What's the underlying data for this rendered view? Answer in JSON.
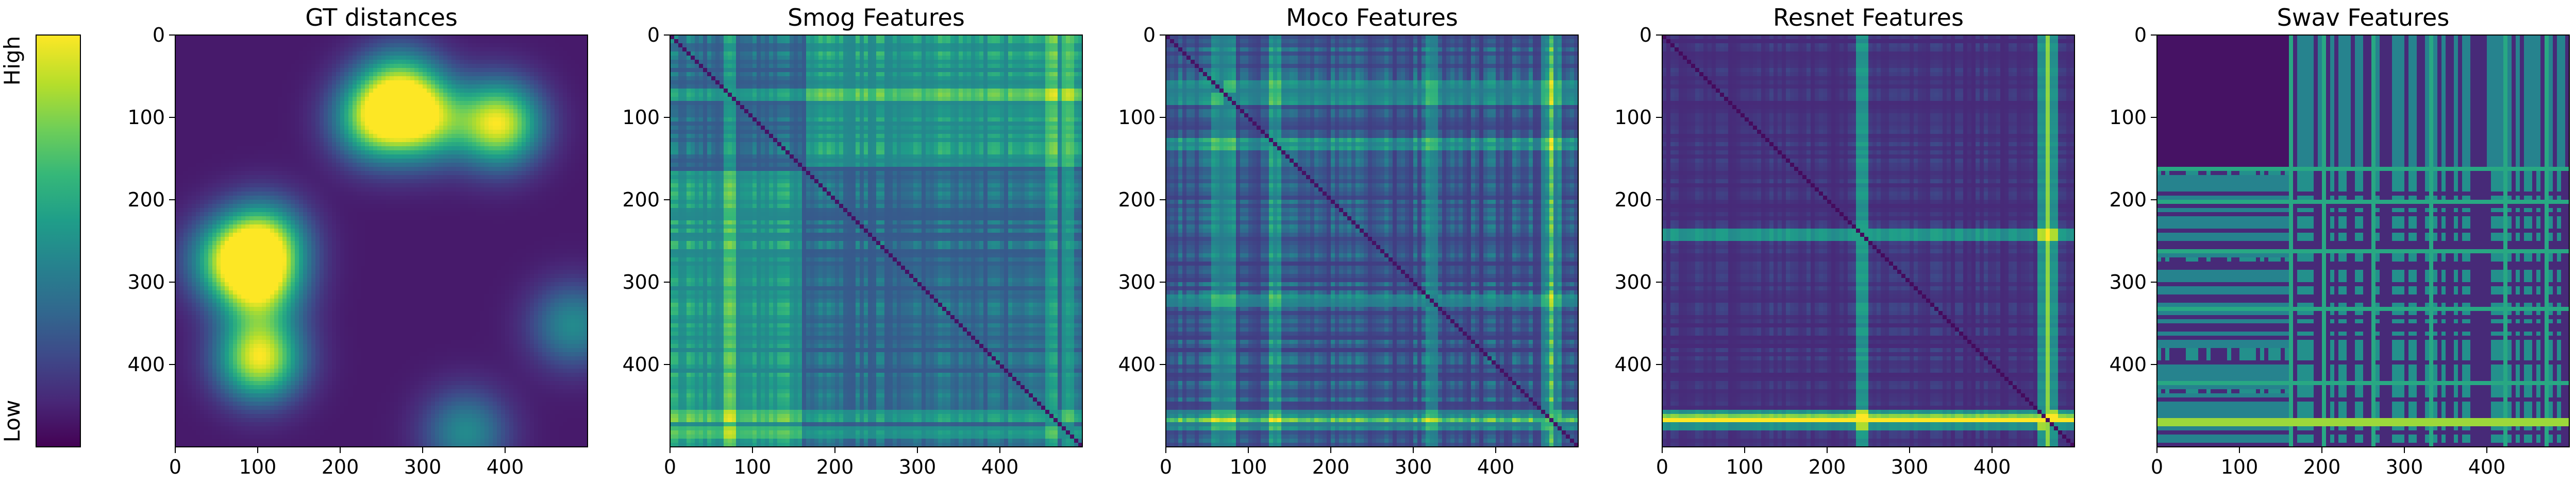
{
  "colormap": {
    "name": "viridis",
    "stops": [
      "#440154",
      "#482777",
      "#3e4989",
      "#31688e",
      "#26828e",
      "#1f9e89",
      "#35b779",
      "#6ece58",
      "#b5de2b",
      "#fde725"
    ]
  },
  "colorbar": {
    "high_label": "High",
    "low_label": "Low"
  },
  "chart_data": [
    {
      "type": "heatmap",
      "title": "GT distances",
      "xlim": [
        0,
        500
      ],
      "ylim": [
        500,
        0
      ],
      "xticks": [
        "0",
        "100",
        "200",
        "300",
        "400"
      ],
      "yticks": [
        "0",
        "100",
        "200",
        "300",
        "400"
      ],
      "pattern": "blobs",
      "description_values": {
        "hotspots": [
          [
            240,
            100,
            0.85
          ],
          [
            300,
            100,
            0.8
          ],
          [
            390,
            105,
            1.0
          ],
          [
            100,
            390,
            1.0
          ],
          [
            105,
            250,
            0.85
          ],
          [
            100,
            300,
            0.8
          ],
          [
            270,
            60,
            0.6
          ],
          [
            60,
            270,
            0.6
          ],
          [
            480,
            350,
            0.45
          ],
          [
            350,
            480,
            0.45
          ]
        ]
      }
    },
    {
      "type": "heatmap",
      "title": "Smog Features",
      "xlim": [
        0,
        500
      ],
      "ylim": [
        500,
        0
      ],
      "xticks": [
        "0",
        "100",
        "200",
        "300",
        "400"
      ],
      "yticks": [
        "0",
        "100",
        "200",
        "300",
        "400"
      ],
      "pattern": "block_stripes",
      "description_values": {
        "block_boundary": 160,
        "hot_columns": [
          70,
          460,
          480
        ],
        "base_level": 0.28
      }
    },
    {
      "type": "heatmap",
      "title": "Moco Features",
      "xlim": [
        0,
        500
      ],
      "ylim": [
        500,
        0
      ],
      "xticks": [
        "0",
        "100",
        "200",
        "300",
        "400"
      ],
      "yticks": [
        "0",
        "100",
        "200",
        "300",
        "400"
      ],
      "pattern": "stripes",
      "description_values": {
        "hot_columns": [
          60,
          75,
          130,
          320,
          460,
          470
        ],
        "base_level": 0.18
      }
    },
    {
      "type": "heatmap",
      "title": "Resnet Features",
      "xlim": [
        0,
        500
      ],
      "ylim": [
        500,
        0
      ],
      "xticks": [
        "0",
        "100",
        "200",
        "300",
        "400"
      ],
      "yticks": [
        "0",
        "100",
        "200",
        "300",
        "400"
      ],
      "pattern": "sparse_stripes",
      "description_values": {
        "hot_columns": [
          460,
          470,
          240
        ],
        "base_level": 0.12
      }
    },
    {
      "type": "heatmap",
      "title": "Swav Features",
      "xlim": [
        0,
        500
      ],
      "ylim": [
        500,
        0
      ],
      "xticks": [
        "0",
        "100",
        "200",
        "300",
        "400"
      ],
      "yticks": [
        "0",
        "100",
        "200",
        "300",
        "400"
      ],
      "pattern": "binary_blocks",
      "description_values": {
        "dark_block": [
          0,
          160
        ],
        "hot_columns": [
          160,
          200,
          260,
          330,
          420,
          470
        ],
        "base_level": 0.4
      }
    }
  ]
}
